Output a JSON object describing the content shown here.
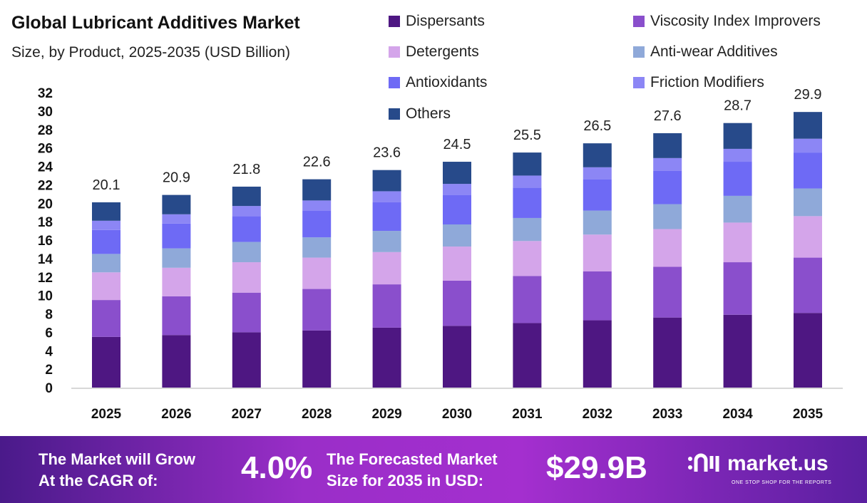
{
  "chart_data": {
    "type": "bar",
    "stacked": true,
    "title": "Global Lubricant Additives Market",
    "subtitle": "Size, by Product, 2025-2035 (USD Billion)",
    "xlabel": "",
    "ylabel": "",
    "ylim": [
      0,
      32
    ],
    "yticks": [
      0,
      2,
      4,
      6,
      8,
      10,
      12,
      14,
      16,
      18,
      20,
      22,
      24,
      26,
      28,
      30,
      32
    ],
    "grid": false,
    "legend_position": "top-right",
    "categories": [
      "2025",
      "2026",
      "2027",
      "2028",
      "2029",
      "2030",
      "2031",
      "2032",
      "2033",
      "2034",
      "2035"
    ],
    "totals": [
      "20.1",
      "20.9",
      "21.8",
      "22.6",
      "23.6",
      "24.5",
      "25.5",
      "26.5",
      "27.6",
      "28.7",
      "29.9"
    ],
    "series": [
      {
        "name": "Dispersants",
        "color": "#4e1782",
        "values": [
          5.5,
          5.7,
          6.0,
          6.2,
          6.5,
          6.7,
          7.0,
          7.3,
          7.6,
          7.9,
          8.1
        ]
      },
      {
        "name": "Viscosity Index Improvers",
        "color": "#8a4fcc",
        "values": [
          4.0,
          4.2,
          4.3,
          4.5,
          4.7,
          4.9,
          5.1,
          5.3,
          5.5,
          5.7,
          6.0
        ]
      },
      {
        "name": "Detergents",
        "color": "#d4a5ea",
        "values": [
          3.0,
          3.1,
          3.3,
          3.4,
          3.5,
          3.7,
          3.8,
          4.0,
          4.1,
          4.3,
          4.5
        ]
      },
      {
        "name": "Anti-wear Additives",
        "color": "#8fa9d9",
        "values": [
          2.0,
          2.1,
          2.2,
          2.2,
          2.3,
          2.4,
          2.5,
          2.6,
          2.7,
          2.9,
          3.0
        ]
      },
      {
        "name": "Antioxidants",
        "color": "#6e6af5",
        "values": [
          2.6,
          2.7,
          2.8,
          2.9,
          3.1,
          3.2,
          3.3,
          3.4,
          3.6,
          3.7,
          3.9
        ]
      },
      {
        "name": "Friction Modifiers",
        "color": "#8c86f5",
        "values": [
          1.0,
          1.0,
          1.1,
          1.1,
          1.2,
          1.2,
          1.3,
          1.3,
          1.4,
          1.4,
          1.5
        ]
      },
      {
        "name": "Others",
        "color": "#274a8a",
        "values": [
          2.0,
          2.1,
          2.1,
          2.3,
          2.3,
          2.4,
          2.5,
          2.6,
          2.7,
          2.8,
          2.9
        ]
      }
    ]
  },
  "footer": {
    "cagr_label_1": "The Market will Grow",
    "cagr_label_2": "At the CAGR of:",
    "cagr_value": "4.0%",
    "size_label_1": "The Forecasted Market",
    "size_label_2": "Size for 2035 in USD:",
    "size_value": "$29.9B",
    "logo_text": "market.us",
    "logo_tagline": "ONE STOP SHOP FOR THE REPORTS"
  }
}
